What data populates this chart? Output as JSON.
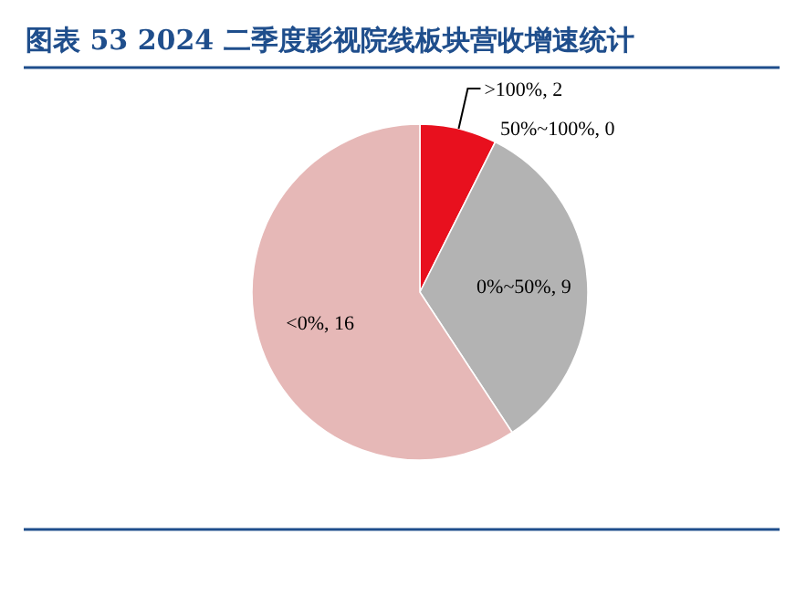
{
  "chart_data": {
    "type": "pie",
    "title": "图表 53  2024 二季度影视院线板块营收增速统计",
    "categories": [
      ">100%",
      "50%~100%",
      "0%~50%",
      "<0%"
    ],
    "values": [
      2,
      0,
      9,
      16
    ],
    "value_labels": [
      ", 2",
      ", 0",
      ", 9",
      ", 16"
    ],
    "colors": [
      "#e8101e",
      "#d9d9d9",
      "#b3b3b3",
      "#e6b8b7"
    ]
  }
}
